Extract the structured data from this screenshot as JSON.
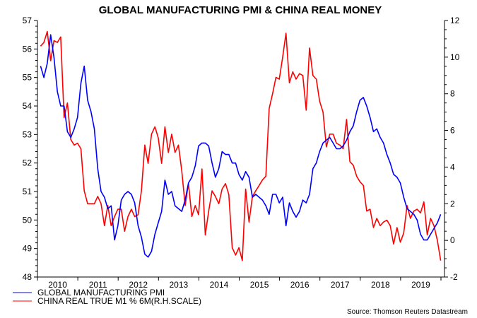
{
  "chart_data": {
    "type": "line",
    "title": "GLOBAL MANUFACTURING PMI & CHINA REAL MONEY",
    "x_start": "2010-01",
    "x_frequency": "monthly",
    "x_tick_labels": [
      "2010",
      "2011",
      "2012",
      "2013",
      "2014",
      "2015",
      "2016",
      "2017",
      "2018",
      "2019"
    ],
    "left_axis": {
      "ylim": [
        48,
        57
      ],
      "ticks": [
        48,
        49,
        50,
        51,
        52,
        53,
        54,
        55,
        56,
        57
      ]
    },
    "right_axis": {
      "ylim": [
        -2,
        12
      ],
      "ticks": [
        -2,
        0,
        2,
        4,
        6,
        8,
        10,
        12
      ]
    },
    "grid": false,
    "legend_position": "bottom-left",
    "source": "Source: Thomson Reuters Datastream",
    "series": [
      {
        "name": "GLOBAL MANUFACTURING PMI",
        "axis": "left",
        "color": "#0000ff",
        "values": [
          55.4,
          55.0,
          55.5,
          56.5,
          55.7,
          54.5,
          54.0,
          54.0,
          53.1,
          52.9,
          53.2,
          53.6,
          54.8,
          55.4,
          54.2,
          53.8,
          53.2,
          51.8,
          51.0,
          50.8,
          50.4,
          50.5,
          49.3,
          49.8,
          50.7,
          50.9,
          51.0,
          50.9,
          50.6,
          49.8,
          49.4,
          48.8,
          48.7,
          48.9,
          49.5,
          49.9,
          50.3,
          51.4,
          50.9,
          51.0,
          50.5,
          50.4,
          50.3,
          50.7,
          51.3,
          51.5,
          51.9,
          52.6,
          52.7,
          52.7,
          52.6,
          52.0,
          51.5,
          51.8,
          52.4,
          52.3,
          52.3,
          52.0,
          52.0,
          51.6,
          51.4,
          51.7,
          51.5,
          50.8,
          50.9,
          50.8,
          50.7,
          50.5,
          50.2,
          50.9,
          50.9,
          50.6,
          50.8,
          49.8,
          50.6,
          50.3,
          50.1,
          50.3,
          50.7,
          50.6,
          50.9,
          51.8,
          52.0,
          52.4,
          52.7,
          52.8,
          52.9,
          52.7,
          52.5,
          52.5,
          52.6,
          52.8,
          53.1,
          53.3,
          53.8,
          54.2,
          54.3,
          54.0,
          53.6,
          53.1,
          53.2,
          52.9,
          52.7,
          52.3,
          52.0,
          51.6,
          51.5,
          51.3,
          50.8,
          50.4,
          50.3,
          50.2,
          50.0,
          49.5,
          49.3,
          49.3,
          49.5,
          49.7,
          49.9,
          50.2
        ]
      },
      {
        "name": "CHINA REAL TRUE M1 % 6M(R.H.SCALE)",
        "axis": "right",
        "color": "#ff0000",
        "values": [
          10.6,
          10.8,
          11.4,
          9.8,
          10.9,
          10.8,
          11.1,
          6.7,
          7.5,
          5.5,
          5.2,
          5.3,
          5.0,
          2.7,
          2.0,
          2.0,
          2.0,
          2.4,
          2.0,
          0.8,
          1.9,
          0.8,
          1.3,
          1.7,
          1.7,
          0.5,
          1.3,
          1.7,
          1.3,
          1.4,
          2.7,
          5.2,
          4.2,
          5.8,
          6.2,
          5.6,
          4.2,
          6.2,
          4.8,
          5.8,
          4.8,
          5.2,
          3.8,
          1.9,
          3.1,
          1.3,
          1.9,
          1.4,
          3.9,
          0.3,
          1.6,
          2.7,
          2.4,
          2.0,
          2.8,
          3.1,
          2.5,
          -0.4,
          -0.8,
          -0.4,
          -1.1,
          2.8,
          1.0,
          2.4,
          2.7,
          3.0,
          3.3,
          3.5,
          7.2,
          8.0,
          8.9,
          8.8,
          10.0,
          11.3,
          8.6,
          9.2,
          8.8,
          9.1,
          9.0,
          7.1,
          10.5,
          9.0,
          8.8,
          7.6,
          7.0,
          5.1,
          5.8,
          5.8,
          5.3,
          5.2,
          5.0,
          6.6,
          4.3,
          4.1,
          3.5,
          3.2,
          3.0,
          1.6,
          1.7,
          0.7,
          1.2,
          0.8,
          1.0,
          1.1,
          0.8,
          -0.2,
          0.7,
          -0.1,
          0.4,
          1.9,
          1.2,
          1.6,
          1.7,
          1.5,
          2.1,
          0.3,
          1.2,
          0.8,
          0.0,
          -1.1
        ]
      }
    ]
  }
}
